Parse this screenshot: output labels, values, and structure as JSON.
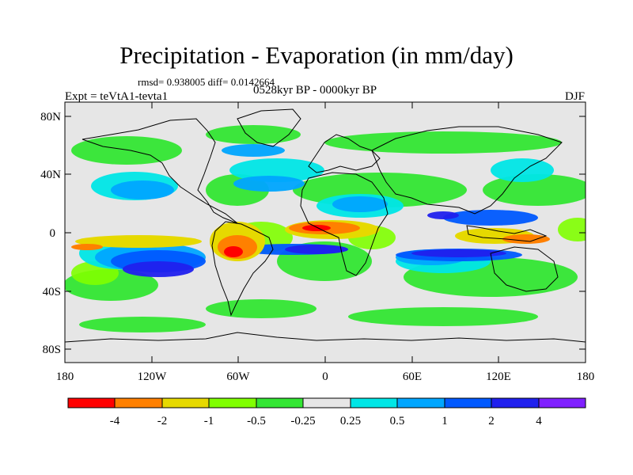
{
  "title": "Precipitation - Evaporation (in mm/day)",
  "stats": "rmsd= 0.938005 diff= 0.0142664",
  "period": "0528kyr BP - 0000kyr BP",
  "experiment": "Expt = teVtA1-tevta1",
  "season": "DJF",
  "axes": {
    "lat_ticks": [
      "80N",
      "40N",
      "0",
      "40S",
      "80S"
    ],
    "lon_ticks": [
      "180",
      "120W",
      "60W",
      "0",
      "60E",
      "120E",
      "180"
    ]
  },
  "colorbar": {
    "labels": [
      "-4",
      "-2",
      "-1",
      "-0.5",
      "-0.25",
      "0.25",
      "0.5",
      "1",
      "2",
      "4"
    ],
    "colors": [
      "#ff0000",
      "#ff8000",
      "#e6d900",
      "#80ff00",
      "#33e633",
      "#e6e6e6",
      "#00e6e6",
      "#00a6ff",
      "#0059ff",
      "#2020ee",
      "#8020ff"
    ]
  }
}
